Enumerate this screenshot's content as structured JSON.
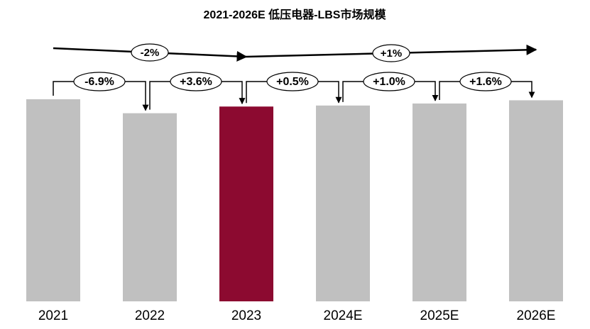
{
  "chart_data": {
    "type": "bar",
    "title": "2021-2026E 低压电器-LBS市场规模",
    "categories": [
      "2021",
      "2022",
      "2023",
      "2024E",
      "2025E",
      "2026E"
    ],
    "values": [
      100,
      93.1,
      96.4,
      96.9,
      97.9,
      99.5
    ],
    "colors": [
      "#c0c0c0",
      "#c0c0c0",
      "#8c0a30",
      "#c0c0c0",
      "#c0c0c0",
      "#c0c0c0"
    ],
    "ylim": [
      0,
      100
    ],
    "change_labels": [
      "-6.9%",
      "+3.6%",
      "+0.5%",
      "+1.0%",
      "+1.6%"
    ],
    "trend_labels": [
      "-2%",
      "+1%"
    ]
  }
}
